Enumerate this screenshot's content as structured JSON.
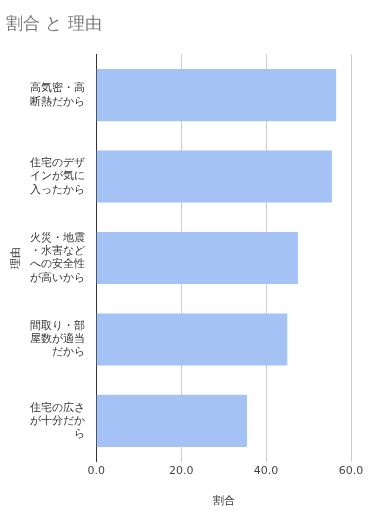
{
  "chart_data": {
    "type": "bar",
    "orientation": "horizontal",
    "title": "割合 と 理由",
    "x_label": "割合",
    "y_label": "理由",
    "categories": [
      "高気密・高断熱だから",
      "住宅のデザインが気に入ったから",
      "火災・地震・水害などへの安全性が高いから",
      "間取り・部屋数が適当だから",
      "住宅の広さが十分だから"
    ],
    "values": [
      56.5,
      55.5,
      47.5,
      45.0,
      35.5
    ],
    "color": "#a4c2f4",
    "xlim": [
      0,
      60
    ],
    "xticks": [
      {
        "value": 0,
        "label": "0.0"
      },
      {
        "value": 20,
        "label": "20.0"
      },
      {
        "value": 40,
        "label": "40.0"
      },
      {
        "value": 60,
        "label": "60.0"
      }
    ],
    "grid": true
  }
}
